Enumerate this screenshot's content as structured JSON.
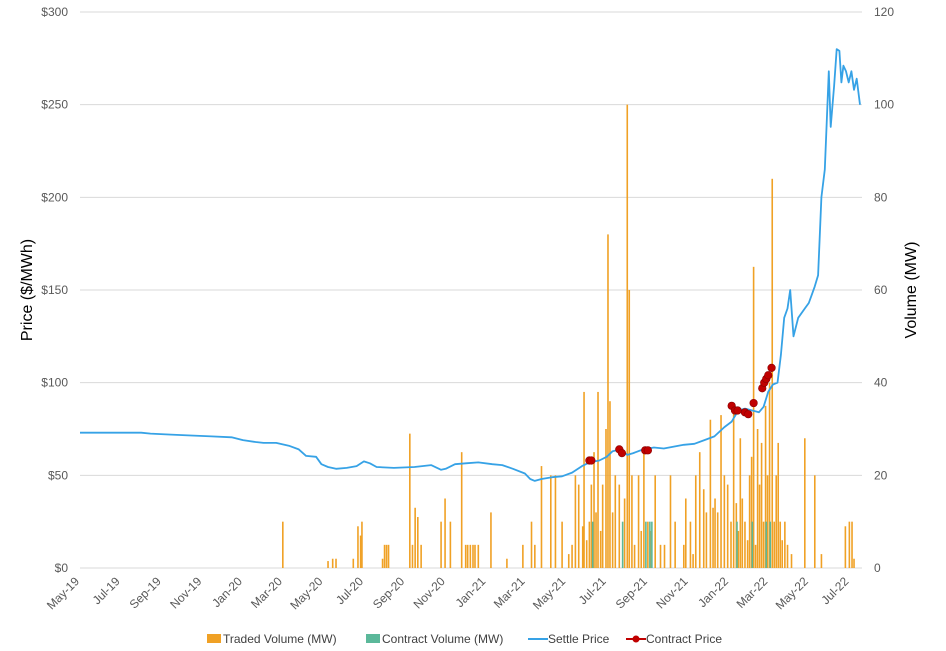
{
  "chart_data": {
    "type": "line",
    "title": "",
    "ylabel": "Price ($/MWh)",
    "y2label": "Volume (MW)",
    "ylim": [
      0,
      300
    ],
    "y2lim": [
      0,
      120
    ],
    "yticks": [
      "$0",
      "$50",
      "$100",
      "$150",
      "$200",
      "$250",
      "$300"
    ],
    "y2ticks": [
      "0",
      "20",
      "40",
      "60",
      "80",
      "100",
      "120"
    ],
    "xlim": [
      "2019-05-01",
      "2022-07-20"
    ],
    "xticks": [
      {
        "date": "2019-05-01",
        "label": "May-19"
      },
      {
        "date": "2019-07-01",
        "label": "Jul-19"
      },
      {
        "date": "2019-09-01",
        "label": "Sep-19"
      },
      {
        "date": "2019-11-01",
        "label": "Nov-19"
      },
      {
        "date": "2020-01-01",
        "label": "Jan-20"
      },
      {
        "date": "2020-03-01",
        "label": "Mar-20"
      },
      {
        "date": "2020-05-01",
        "label": "May-20"
      },
      {
        "date": "2020-07-01",
        "label": "Jul-20"
      },
      {
        "date": "2020-09-01",
        "label": "Sep-20"
      },
      {
        "date": "2020-11-01",
        "label": "Nov-20"
      },
      {
        "date": "2021-01-01",
        "label": "Jan-21"
      },
      {
        "date": "2021-03-01",
        "label": "Mar-21"
      },
      {
        "date": "2021-05-01",
        "label": "May-21"
      },
      {
        "date": "2021-07-01",
        "label": "Jul-21"
      },
      {
        "date": "2021-09-01",
        "label": "Sep-21"
      },
      {
        "date": "2021-11-01",
        "label": "Nov-21"
      },
      {
        "date": "2022-01-01",
        "label": "Jan-22"
      },
      {
        "date": "2022-03-01",
        "label": "Mar-22"
      },
      {
        "date": "2022-05-01",
        "label": "May-22"
      },
      {
        "date": "2022-07-01",
        "label": "Jul-22"
      }
    ],
    "grid": true,
    "legend_position": "bottom",
    "colors": {
      "traded": "#F0A125",
      "contract_vol": "#5BB89A",
      "settle": "#36A2E6",
      "contract_price": "#C00000",
      "grid": "#D9D9D9"
    },
    "legend": [
      "Traded Volume (MW)",
      "Contract Volume (MW)",
      "Settle Price",
      "Contract Price"
    ],
    "series": [
      {
        "name": "Settle Price",
        "type": "line",
        "axis": "left",
        "points": [
          [
            "2019-05-01",
            73
          ],
          [
            "2019-07-01",
            73
          ],
          [
            "2019-08-01",
            73
          ],
          [
            "2019-08-15",
            72.5
          ],
          [
            "2019-09-15",
            72
          ],
          [
            "2019-10-15",
            71.5
          ],
          [
            "2019-11-15",
            71
          ],
          [
            "2019-12-15",
            70.5
          ],
          [
            "2020-01-01",
            69
          ],
          [
            "2020-01-20",
            68
          ],
          [
            "2020-02-01",
            67.5
          ],
          [
            "2020-02-20",
            67.5
          ],
          [
            "2020-03-10",
            66
          ],
          [
            "2020-03-25",
            64
          ],
          [
            "2020-04-05",
            60.5
          ],
          [
            "2020-04-20",
            60
          ],
          [
            "2020-04-28",
            56
          ],
          [
            "2020-05-08",
            54.5
          ],
          [
            "2020-05-20",
            53.5
          ],
          [
            "2020-06-05",
            54
          ],
          [
            "2020-06-20",
            55
          ],
          [
            "2020-07-01",
            57.5
          ],
          [
            "2020-07-10",
            56.5
          ],
          [
            "2020-07-20",
            54.5
          ],
          [
            "2020-08-15",
            54
          ],
          [
            "2020-09-15",
            54.5
          ],
          [
            "2020-10-10",
            55.5
          ],
          [
            "2020-10-25",
            53
          ],
          [
            "2020-11-01",
            53.5
          ],
          [
            "2020-11-15",
            56
          ],
          [
            "2020-12-01",
            56.5
          ],
          [
            "2020-12-20",
            57
          ],
          [
            "2021-01-10",
            56
          ],
          [
            "2021-01-25",
            55.5
          ],
          [
            "2021-02-10",
            53.5
          ],
          [
            "2021-02-28",
            51
          ],
          [
            "2021-03-08",
            48
          ],
          [
            "2021-03-15",
            47
          ],
          [
            "2021-03-25",
            48
          ],
          [
            "2021-04-10",
            49
          ],
          [
            "2021-04-25",
            49.5
          ],
          [
            "2021-05-10",
            51.5
          ],
          [
            "2021-05-25",
            55
          ],
          [
            "2021-06-05",
            57
          ],
          [
            "2021-06-20",
            58
          ],
          [
            "2021-07-01",
            60
          ],
          [
            "2021-07-10",
            63
          ],
          [
            "2021-07-22",
            64
          ],
          [
            "2021-08-01",
            61
          ],
          [
            "2021-08-10",
            62
          ],
          [
            "2021-08-25",
            64
          ],
          [
            "2021-09-10",
            65
          ],
          [
            "2021-09-25",
            64.5
          ],
          [
            "2021-10-10",
            65.5
          ],
          [
            "2021-10-25",
            66.5
          ],
          [
            "2021-11-10",
            67
          ],
          [
            "2021-11-25",
            69
          ],
          [
            "2021-12-10",
            71
          ],
          [
            "2021-12-25",
            76
          ],
          [
            "2022-01-05",
            79
          ],
          [
            "2022-01-15",
            85
          ],
          [
            "2022-01-25",
            86
          ],
          [
            "2022-02-05",
            85
          ],
          [
            "2022-02-15",
            84
          ],
          [
            "2022-02-22",
            87
          ],
          [
            "2022-03-01",
            95
          ],
          [
            "2022-03-08",
            99
          ],
          [
            "2022-03-15",
            100
          ],
          [
            "2022-03-20",
            115
          ],
          [
            "2022-03-25",
            135
          ],
          [
            "2022-03-30",
            140
          ],
          [
            "2022-04-03",
            150
          ],
          [
            "2022-04-08",
            125
          ],
          [
            "2022-04-15",
            135
          ],
          [
            "2022-04-25",
            140
          ],
          [
            "2022-05-01",
            143
          ],
          [
            "2022-05-05",
            147
          ],
          [
            "2022-05-10",
            152
          ],
          [
            "2022-05-15",
            158
          ],
          [
            "2022-05-20",
            200
          ],
          [
            "2022-05-25",
            215
          ],
          [
            "2022-05-31",
            268
          ],
          [
            "2022-06-03",
            238
          ],
          [
            "2022-06-08",
            260
          ],
          [
            "2022-06-12",
            280
          ],
          [
            "2022-06-16",
            279
          ],
          [
            "2022-06-19",
            262
          ],
          [
            "2022-06-22",
            271
          ],
          [
            "2022-06-26",
            268
          ],
          [
            "2022-06-30",
            262
          ],
          [
            "2022-07-04",
            268
          ],
          [
            "2022-07-08",
            258
          ],
          [
            "2022-07-12",
            264
          ],
          [
            "2022-07-17",
            250
          ]
        ]
      },
      {
        "name": "Contract Price",
        "type": "scatter",
        "axis": "left",
        "points": [
          [
            "2021-06-05",
            58
          ],
          [
            "2021-06-08",
            58
          ],
          [
            "2021-07-20",
            64
          ],
          [
            "2021-07-24",
            62
          ],
          [
            "2021-08-28",
            63.5
          ],
          [
            "2021-09-01",
            63.5
          ],
          [
            "2022-01-05",
            87.5
          ],
          [
            "2022-01-10",
            85
          ],
          [
            "2022-01-14",
            85
          ],
          [
            "2022-01-25",
            84
          ],
          [
            "2022-01-30",
            83
          ],
          [
            "2022-02-07",
            89
          ],
          [
            "2022-02-20",
            97
          ],
          [
            "2022-02-23",
            100
          ],
          [
            "2022-02-26",
            102
          ],
          [
            "2022-03-01",
            104
          ],
          [
            "2022-03-06",
            108
          ]
        ]
      },
      {
        "name": "Traded Volume (MW)",
        "type": "bar",
        "axis": "right",
        "points": [
          [
            "2020-03-01",
            10
          ],
          [
            "2020-05-08",
            1.5
          ],
          [
            "2020-05-15",
            2
          ],
          [
            "2020-05-20",
            2
          ],
          [
            "2020-06-15",
            2
          ],
          [
            "2020-06-22",
            9
          ],
          [
            "2020-06-26",
            7
          ],
          [
            "2020-06-28",
            10
          ],
          [
            "2020-07-29",
            2
          ],
          [
            "2020-08-01",
            5
          ],
          [
            "2020-08-04",
            5
          ],
          [
            "2020-08-07",
            5
          ],
          [
            "2020-09-08",
            29
          ],
          [
            "2020-09-12",
            5
          ],
          [
            "2020-09-16",
            13
          ],
          [
            "2020-09-20",
            11
          ],
          [
            "2020-09-25",
            5
          ],
          [
            "2020-10-25",
            10
          ],
          [
            "2020-10-31",
            15
          ],
          [
            "2020-11-08",
            10
          ],
          [
            "2020-11-25",
            25
          ],
          [
            "2020-12-01",
            5
          ],
          [
            "2020-12-04",
            5
          ],
          [
            "2020-12-08",
            5
          ],
          [
            "2020-12-12",
            5
          ],
          [
            "2020-12-15",
            5
          ],
          [
            "2020-12-20",
            5
          ],
          [
            "2021-01-08",
            12
          ],
          [
            "2021-02-01",
            2
          ],
          [
            "2021-02-25",
            5
          ],
          [
            "2021-03-10",
            10
          ],
          [
            "2021-03-15",
            5
          ],
          [
            "2021-03-25",
            22
          ],
          [
            "2021-04-08",
            20
          ],
          [
            "2021-04-15",
            20
          ],
          [
            "2021-04-25",
            10
          ],
          [
            "2021-05-05",
            3
          ],
          [
            "2021-05-10",
            5
          ],
          [
            "2021-05-15",
            20
          ],
          [
            "2021-05-20",
            18
          ],
          [
            "2021-05-26",
            9
          ],
          [
            "2021-05-28",
            38
          ],
          [
            "2021-06-01",
            6
          ],
          [
            "2021-06-05",
            10
          ],
          [
            "2021-06-08",
            18
          ],
          [
            "2021-06-12",
            25
          ],
          [
            "2021-06-15",
            12
          ],
          [
            "2021-06-18",
            38
          ],
          [
            "2021-06-22",
            8
          ],
          [
            "2021-06-25",
            18
          ],
          [
            "2021-06-30",
            30
          ],
          [
            "2021-07-03",
            72
          ],
          [
            "2021-07-06",
            36
          ],
          [
            "2021-07-10",
            12
          ],
          [
            "2021-07-14",
            20
          ],
          [
            "2021-07-20",
            18
          ],
          [
            "2021-07-28",
            15
          ],
          [
            "2021-08-01",
            100
          ],
          [
            "2021-08-04",
            60
          ],
          [
            "2021-08-08",
            20
          ],
          [
            "2021-08-12",
            5
          ],
          [
            "2021-08-18",
            20
          ],
          [
            "2021-08-22",
            8
          ],
          [
            "2021-08-26",
            25
          ],
          [
            "2021-09-01",
            10
          ],
          [
            "2021-09-05",
            8
          ],
          [
            "2021-09-12",
            20
          ],
          [
            "2021-09-20",
            5
          ],
          [
            "2021-09-26",
            5
          ],
          [
            "2021-10-05",
            20
          ],
          [
            "2021-10-12",
            10
          ],
          [
            "2021-10-25",
            5
          ],
          [
            "2021-10-28",
            15
          ],
          [
            "2021-11-04",
            10
          ],
          [
            "2021-11-08",
            3
          ],
          [
            "2021-11-12",
            20
          ],
          [
            "2021-11-18",
            25
          ],
          [
            "2021-11-24",
            17
          ],
          [
            "2021-11-28",
            12
          ],
          [
            "2021-12-04",
            32
          ],
          [
            "2021-12-08",
            13
          ],
          [
            "2021-12-11",
            15
          ],
          [
            "2021-12-15",
            12
          ],
          [
            "2021-12-20",
            33
          ],
          [
            "2021-12-25",
            20
          ],
          [
            "2021-12-30",
            18
          ],
          [
            "2022-01-04",
            10
          ],
          [
            "2022-01-08",
            35
          ],
          [
            "2022-01-12",
            14
          ],
          [
            "2022-01-15",
            8
          ],
          [
            "2022-01-18",
            28
          ],
          [
            "2022-01-21",
            15
          ],
          [
            "2022-01-25",
            10
          ],
          [
            "2022-01-29",
            6
          ],
          [
            "2022-02-01",
            20
          ],
          [
            "2022-02-04",
            24
          ],
          [
            "2022-02-07",
            65
          ],
          [
            "2022-02-10",
            5
          ],
          [
            "2022-02-13",
            30
          ],
          [
            "2022-02-16",
            18
          ],
          [
            "2022-02-19",
            27
          ],
          [
            "2022-02-22",
            10
          ],
          [
            "2022-02-25",
            35
          ],
          [
            "2022-02-28",
            20
          ],
          [
            "2022-03-03",
            40
          ],
          [
            "2022-03-07",
            84
          ],
          [
            "2022-03-10",
            10
          ],
          [
            "2022-03-13",
            20
          ],
          [
            "2022-03-16",
            27
          ],
          [
            "2022-03-19",
            10
          ],
          [
            "2022-03-22",
            6
          ],
          [
            "2022-03-26",
            10
          ],
          [
            "2022-03-30",
            5
          ],
          [
            "2022-04-05",
            3
          ],
          [
            "2022-04-25",
            28
          ],
          [
            "2022-05-10",
            20
          ],
          [
            "2022-05-20",
            3
          ],
          [
            "2022-06-25",
            9
          ],
          [
            "2022-07-01",
            10
          ],
          [
            "2022-07-05",
            10
          ],
          [
            "2022-07-08",
            2
          ]
        ]
      },
      {
        "name": "Contract Volume (MW)",
        "type": "bar",
        "axis": "right",
        "points": [
          [
            "2021-06-10",
            10
          ],
          [
            "2021-07-25",
            10
          ],
          [
            "2021-08-29",
            10
          ],
          [
            "2021-09-04",
            10
          ],
          [
            "2021-09-07",
            10
          ],
          [
            "2022-01-13",
            10
          ],
          [
            "2022-02-05",
            10
          ],
          [
            "2022-02-26",
            10
          ],
          [
            "2022-03-04",
            10
          ]
        ]
      }
    ]
  }
}
